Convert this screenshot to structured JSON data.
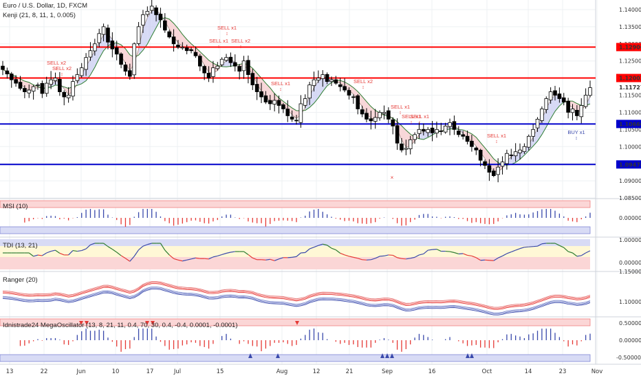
{
  "header": {
    "symbol": "Euro / U.S. Dollar, 1D, FXCM",
    "indicator": "Kenji (21, 8, 11, 1, 0.005)"
  },
  "panes": {
    "msi": "MSI (10)",
    "tdi": "TDI (13, 21)",
    "ranger": "Ranger (20)",
    "mega": "Idnistrade24 MegaOscillator (13, 8, 21, 11, 0.4, 70, 30, 0.4, -0.4, 0.0001, -0.0001)"
  },
  "price_axis": {
    "ticks": [
      "1.14000",
      "1.13500",
      "1.13000",
      "1.12500",
      "1.12000",
      "1.11500",
      "1.11000",
      "1.10500",
      "1.10000",
      "1.09500",
      "1.09000",
      "1.08500"
    ],
    "current": "1.11727",
    "levels": [
      {
        "value": "1.12906",
        "color": "#ff0000"
      },
      {
        "value": "1.12002",
        "color": "#ff0000"
      },
      {
        "value": "1.10660",
        "color": "#0000cc"
      },
      {
        "value": "1.09478",
        "color": "#0000cc"
      }
    ]
  },
  "msi_axis": [
    "0.00000"
  ],
  "tdi_axis": [
    "1.00000",
    "0.00000"
  ],
  "ranger_axis": [
    "1.15000",
    "1.10000"
  ],
  "mega_axis": [
    "0.50000",
    "0.00000",
    "-0.50000"
  ],
  "time_axis": [
    "13",
    "22",
    "Jun",
    "10",
    "17",
    "Jul",
    "15",
    "Aug",
    "12",
    "21",
    "Sep",
    "16",
    "Oct",
    "14",
    "23",
    "Nov"
  ],
  "signals": [
    "SELL x2",
    "SELL x2",
    "SELL x1",
    "SELL x1",
    "SELL x2",
    "SELL x1",
    "SELL x2",
    "SELL x1",
    "SELL x1",
    "SELL x1",
    "SELL x1",
    "BUY x1"
  ],
  "colors": {
    "bull": "#ffffff",
    "bear": "#000000",
    "sell": "#e53935",
    "buy": "#3949ab"
  },
  "chart_data": {
    "type": "candlestick",
    "title": "Euro / U.S. Dollar, 1D, FXCM",
    "x_range": [
      "May 13",
      "Oct 29"
    ],
    "y_range": [
      1.085,
      1.142
    ],
    "horizontal_levels": [
      1.12906,
      1.12002,
      1.1066,
      1.09478
    ],
    "last_close": 1.11727,
    "close": [
      1.1225,
      1.1212,
      1.1195,
      1.1185,
      1.117,
      1.116,
      1.1165,
      1.1175,
      1.118,
      1.1155,
      1.1185,
      1.1195,
      1.12,
      1.116,
      1.1145,
      1.115,
      1.119,
      1.121,
      1.123,
      1.126,
      1.128,
      1.13,
      1.133,
      1.135,
      1.1305,
      1.1285,
      1.127,
      1.124,
      1.122,
      1.1205,
      1.13,
      1.135,
      1.1385,
      1.1395,
      1.141,
      1.1385,
      1.137,
      1.134,
      1.132,
      1.13,
      1.129,
      1.129,
      1.128,
      1.128,
      1.1265,
      1.1235,
      1.1215,
      1.12,
      1.123,
      1.1235,
      1.1255,
      1.126,
      1.1245,
      1.1235,
      1.122,
      1.125,
      1.121,
      1.118,
      1.116,
      1.1145,
      1.113,
      1.1125,
      1.1135,
      1.112,
      1.111,
      1.109,
      1.108,
      1.1075,
      1.1125,
      1.114,
      1.118,
      1.1195,
      1.12,
      1.121,
      1.119,
      1.1195,
      1.1185,
      1.1175,
      1.1165,
      1.115,
      1.1145,
      1.111,
      1.1095,
      1.108,
      1.1075,
      1.1085,
      1.11,
      1.11,
      1.108,
      1.106,
      1.101,
      1.099,
      1.0995,
      1.102,
      1.1035,
      1.105,
      1.1045,
      1.105,
      1.104,
      1.105,
      1.1045,
      1.106,
      1.107,
      1.105,
      1.1035,
      1.103,
      1.1015,
      1.1,
      1.099,
      1.096,
      1.0945,
      1.0925,
      1.0915,
      1.094,
      1.0955,
      1.098,
      1.0975,
      1.0985,
      1.099,
      1.1,
      1.103,
      1.105,
      1.108,
      1.111,
      1.114,
      1.116,
      1.115,
      1.114,
      1.113,
      1.11,
      1.111,
      1.109,
      1.112,
      1.115,
      1.1172
    ]
  }
}
